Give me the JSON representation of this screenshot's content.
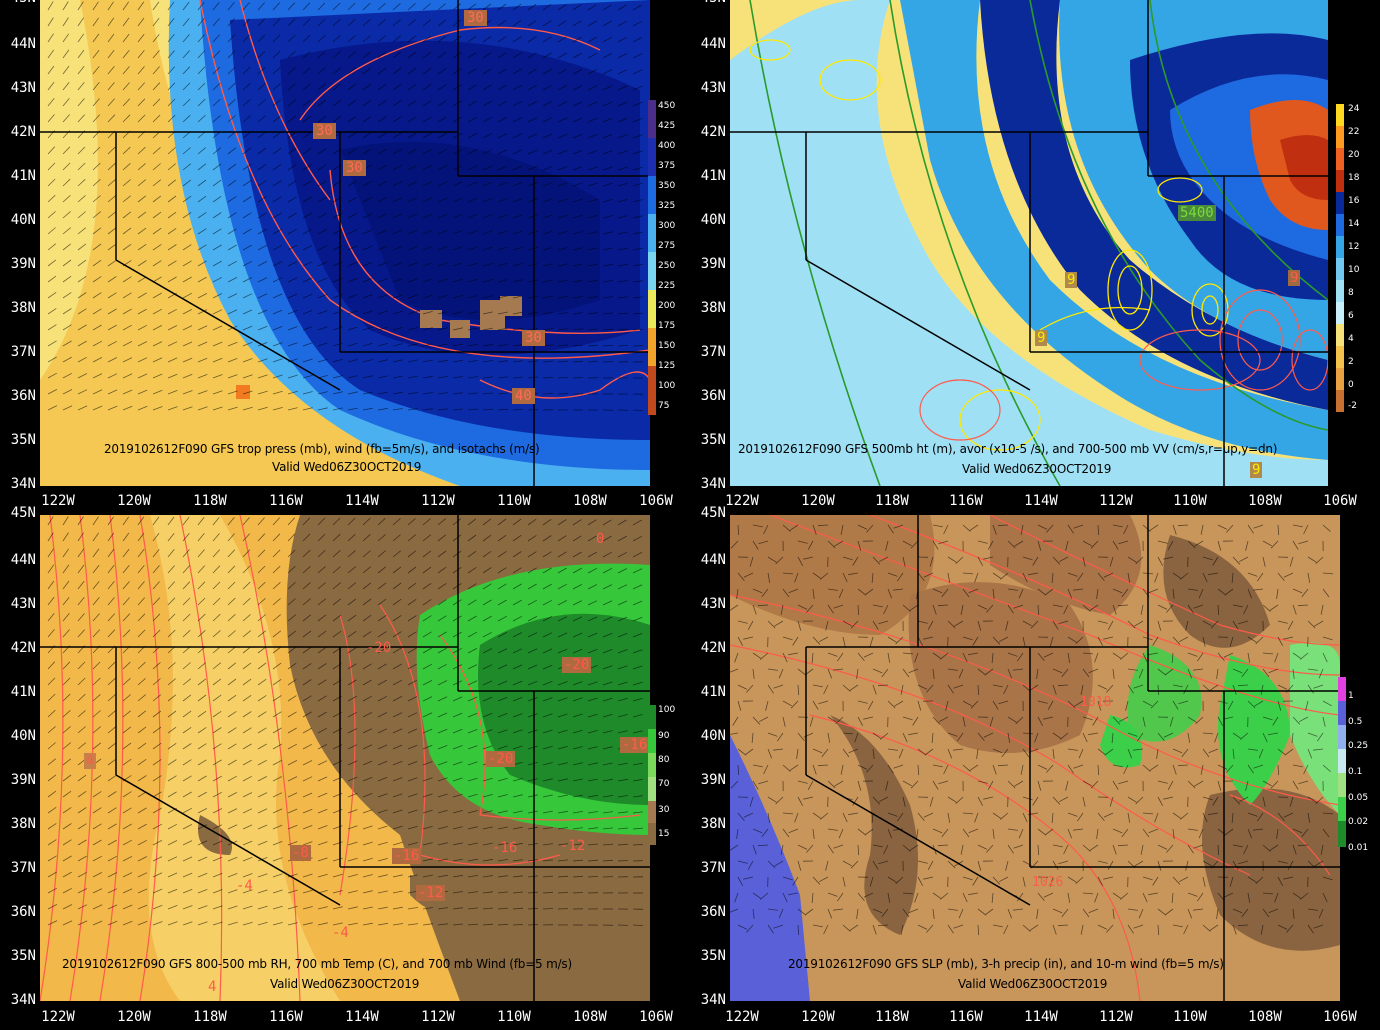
{
  "lat_labels": [
    "45N",
    "44N",
    "43N",
    "42N",
    "41N",
    "40N",
    "39N",
    "38N",
    "37N",
    "36N",
    "35N",
    "34N"
  ],
  "lon_labels": [
    "122W",
    "120W",
    "118W",
    "116W",
    "114W",
    "112W",
    "110W",
    "108W",
    "106W"
  ],
  "panels": [
    {
      "id": "tropopause",
      "title": "2019102612F090 GFS trop press (mb), wind (fb=5m/s), and isotachs (m/s)",
      "valid": "Valid Wed06Z30OCT2019",
      "colorbar": [
        "450",
        "425",
        "400",
        "375",
        "350",
        "325",
        "300",
        "275",
        "250",
        "225",
        "200",
        "175",
        "150",
        "125",
        "100",
        "75"
      ],
      "colors": [
        "#f7e27a",
        "#f2c24a",
        "#1845d0",
        "#0a2aa8",
        "#06188a",
        "#1e6ae0",
        "#4ab0f0"
      ],
      "contour_labels": [
        "30",
        "30",
        "30",
        "30",
        "40"
      ]
    },
    {
      "id": "vorticity",
      "title": "2019102612F090 GFS 500mb ht (m), avor (x10-5 /s), and 700-500 mb VV (cm/s,r=up,y=dn)",
      "valid": "Valid Wed06Z30OCT2019",
      "colorbar": [
        "24",
        "22",
        "20",
        "18",
        "16",
        "14",
        "12",
        "10",
        "8",
        "6",
        "4",
        "2",
        "0",
        "-2"
      ],
      "colors": [
        "#f7e27a",
        "#9fe0f5",
        "#34a6e6",
        "#0b2a9a",
        "#e0581e",
        "#2a9a2a"
      ],
      "contour_labels": [
        "5400",
        "9",
        "9",
        "9",
        "9"
      ]
    },
    {
      "id": "rh-temp",
      "title": "2019102612F090 GFS 800-500 mb RH, 700 mb Temp (C), and 700 mb Wind (fb=5 m/s)",
      "valid": "Valid Wed06Z30OCT2019",
      "colorbar": [
        "100",
        "90",
        "80",
        "70",
        "30",
        "15"
      ],
      "colors": [
        "#f2b84a",
        "#f7d870",
        "#8a6a40",
        "#36c83a",
        "#1e8a2a"
      ],
      "contour_labels": [
        "-20",
        "-20",
        "-20",
        "-16",
        "-16",
        "-16",
        "-12",
        "-12",
        "-8",
        "-4",
        "-4",
        "4",
        "4",
        "0"
      ]
    },
    {
      "id": "slp-precip",
      "title": "2019102612F090 GFS SLP (mb), 3-h precip (in), and 10-m wind (fb=5 m/s)",
      "valid": "Valid Wed06Z30OCT2019",
      "colorbar": [
        "1",
        "0.5",
        "0.25",
        "0.1",
        "0.05",
        "0.02",
        "0.01"
      ],
      "colors": [
        "#c8965a",
        "#8a6440",
        "#5a60d8",
        "#3cd04a"
      ],
      "contour_labels": [
        "1018",
        "1026"
      ]
    }
  ]
}
